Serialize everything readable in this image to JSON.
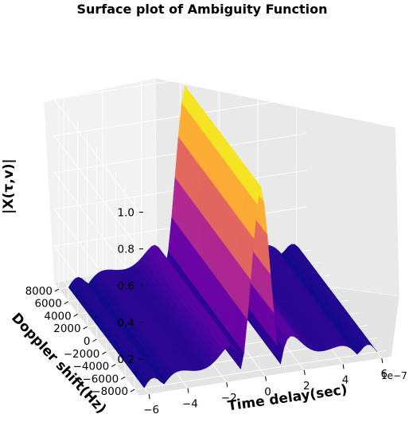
{
  "chart_data": {
    "type": "surface",
    "title": "Surface plot of Ambiguity Function",
    "xlabel": "Time delay(sec)",
    "ylabel": "Doppler shift(Hz)",
    "zlabel": "|X(τ,v)|",
    "x_scale_label": "1e−7",
    "x_ticks": [
      "−6",
      "−4",
      "−2",
      "0",
      "2",
      "4",
      "6"
    ],
    "y_ticks": [
      "8000",
      "6000",
      "4000",
      "2000",
      "0",
      "−2000",
      "−4000",
      "−6000",
      "−8000"
    ],
    "z_ticks": [
      "0.2",
      "0.4",
      "0.6",
      "0.8",
      "1.0"
    ],
    "xlim": [
      -6.5e-07,
      6.5e-07
    ],
    "ylim": [
      -9000,
      9000
    ],
    "zlim": [
      0,
      1.05
    ],
    "peak": {
      "x": 0,
      "y": 0,
      "z": 1.0
    },
    "colormap": "plasma",
    "grid": true
  }
}
